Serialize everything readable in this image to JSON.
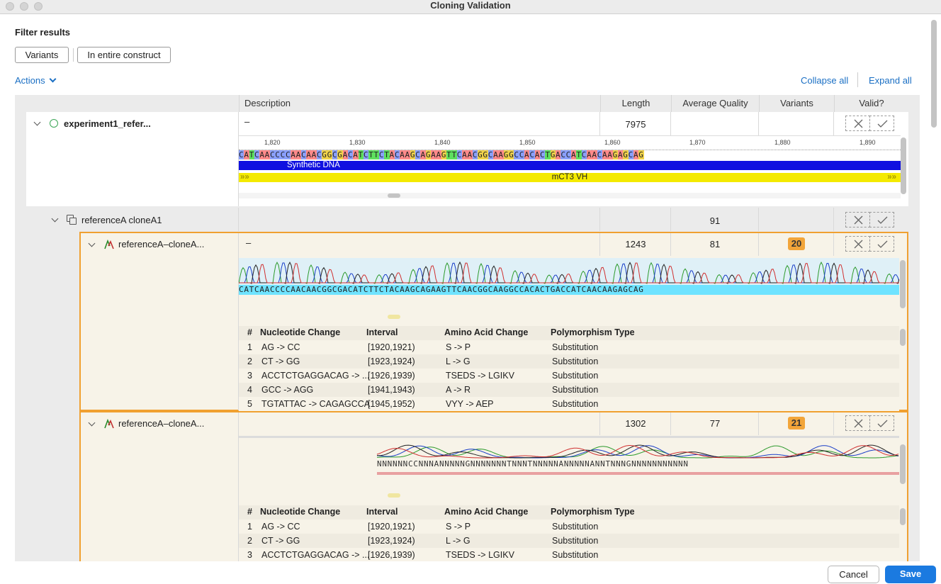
{
  "window": {
    "title": "Cloning Validation"
  },
  "filter": {
    "label": "Filter results",
    "chip_variants": "Variants",
    "chip_scope": "In entire construct"
  },
  "actions": {
    "label": "Actions",
    "collapse_all": "Collapse all",
    "expand_all": "Expand all"
  },
  "columns": {
    "description": "Description",
    "length": "Length",
    "average_quality": "Average Quality",
    "variants": "Variants",
    "valid": "Valid?"
  },
  "reference": {
    "name": "experiment1_refer...",
    "description": "–",
    "length": "7975",
    "ruler": [
      "1,820",
      "1,830",
      "1,840",
      "1,850",
      "1,860",
      "1,870",
      "1,880",
      "1,890"
    ],
    "sequence": "CATCAACCCCAACAACGGCGACATCTTCTACAAGCAGAAGTTCAACGGCAAGGCCACACTGACCATCAACAAGAGCAG",
    "annotation_synthetic": "Synthetic DNA",
    "annotation_cds": "mCT3 VH"
  },
  "group": {
    "name": "referenceA cloneA1",
    "average_quality": "91"
  },
  "clones": [
    {
      "name": "referenceA–cloneA...",
      "description": "–",
      "length": "1243",
      "average_quality": "81",
      "variants": "20",
      "sequence": "CATCAACCCCAACAACGGCGACATCTTCTACAAGCAGAAGTTCAACGGCAAGGCCACACTGACCATCAACAAGAGCAG",
      "variant_headers": {
        "num": "#",
        "nucleotide": "Nucleotide Change",
        "interval": "Interval",
        "amino": "Amino Acid Change",
        "type": "Polymorphism Type"
      },
      "variant_rows": [
        {
          "num": "1",
          "nucleotide": "AG -> CC",
          "interval": "[1920,1921)",
          "amino": "S -> P",
          "type": "Substitution"
        },
        {
          "num": "2",
          "nucleotide": "CT -> GG",
          "interval": "[1923,1924)",
          "amino": "L -> G",
          "type": "Substitution"
        },
        {
          "num": "3",
          "nucleotide": "ACCTCTGAGGACAG -> ...",
          "interval": "[1926,1939)",
          "amino": "TSEDS -> LGIKV",
          "type": "Substitution"
        },
        {
          "num": "4",
          "nucleotide": "GCC -> AGG",
          "interval": "[1941,1943)",
          "amino": "A -> R",
          "type": "Substitution"
        },
        {
          "num": "5",
          "nucleotide": "TGTATTAC -> CAGAGCCA",
          "interval": "[1945,1952)",
          "amino": "VYY -> AEP",
          "type": "Substitution"
        }
      ]
    },
    {
      "name": "referenceA–cloneA...",
      "description": "",
      "length": "1302",
      "average_quality": "77",
      "variants": "21",
      "sequence": "NNNNNNCCNNNANNNNNGNNNNNNNTNNNTNNNNNANNNNNANNTNNNGNNNNNNNNNNN",
      "variant_headers": {
        "num": "#",
        "nucleotide": "Nucleotide Change",
        "interval": "Interval",
        "amino": "Amino Acid Change",
        "type": "Polymorphism Type"
      },
      "variant_rows": [
        {
          "num": "1",
          "nucleotide": "AG -> CC",
          "interval": "[1920,1921)",
          "amino": "S -> P",
          "type": "Substitution"
        },
        {
          "num": "2",
          "nucleotide": "CT -> GG",
          "interval": "[1923,1924)",
          "amino": "L -> G",
          "type": "Substitution"
        },
        {
          "num": "3",
          "nucleotide": "ACCTCTGAGGACAG -> ...",
          "interval": "[1926,1939)",
          "amino": "TSEDS -> LGIKV",
          "type": "Substitution"
        }
      ]
    }
  ],
  "footer": {
    "cancel": "Cancel",
    "save": "Save"
  },
  "colors": {
    "accent": "#1a6fc4",
    "badge": "#f2a53a",
    "highlight": "#f0a030",
    "save": "#1b7ae0"
  }
}
